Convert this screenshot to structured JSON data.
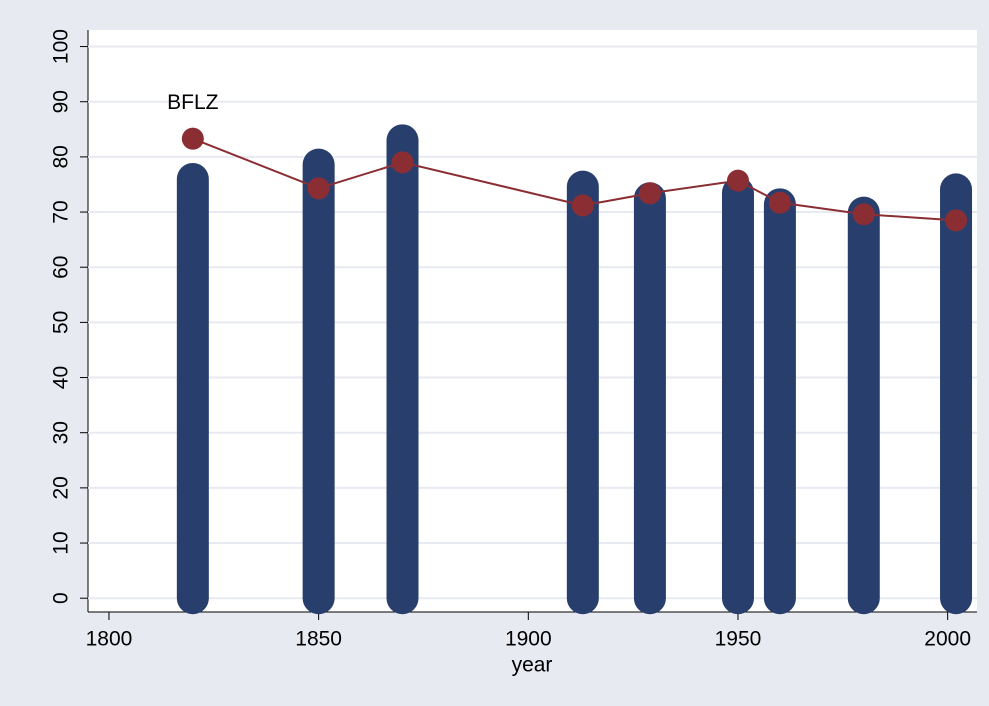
{
  "chart_data": {
    "type": "bar_line",
    "x": [
      1820,
      1850,
      1870,
      1913,
      1929,
      1950,
      1960,
      1980,
      2002
    ],
    "series": [
      {
        "type": "bar",
        "color": "#283f6e",
        "values": [
          76,
          78.6,
          83,
          74.6,
          72.5,
          73.5,
          71.4,
          69.9,
          74.1
        ]
      },
      {
        "type": "line",
        "color": "#8b2e34",
        "values": [
          83.3,
          74.3,
          79,
          71.2,
          73.4,
          75.7,
          71.7,
          69.6,
          68.5
        ]
      }
    ],
    "annotations": [
      "BFLZ"
    ],
    "xlabel": "year",
    "xlim": [
      1795,
      2007
    ],
    "xticks": [
      1800,
      1850,
      1900,
      1950,
      2000
    ],
    "ylim": [
      -2.5,
      103
    ],
    "yticks": [
      0,
      10,
      20,
      30,
      40,
      50,
      60,
      70,
      80,
      90,
      100
    ],
    "grid": true
  }
}
